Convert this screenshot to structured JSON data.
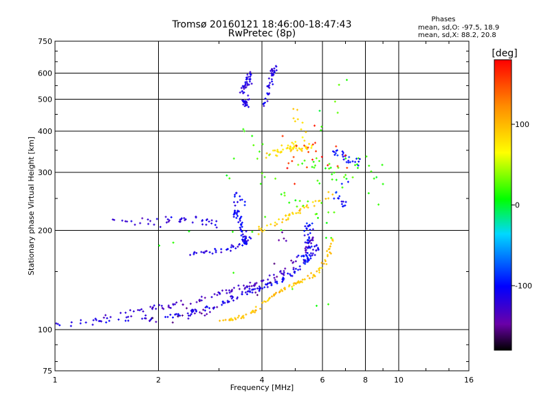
{
  "chart_data": {
    "type": "scatter",
    "title": "Tromsø 20160121 18:46:00-18:47:43",
    "subtitle": "RwPretec (8p)",
    "xlabel": "Frequency [MHz]",
    "ylabel": "Stationary phase Virtual Height [km]",
    "x_scale": "log",
    "y_scale": "log",
    "xlim": [
      1,
      16
    ],
    "ylim": [
      75,
      750
    ],
    "x_ticks": [
      1,
      2,
      4,
      6,
      8,
      10,
      16
    ],
    "x_tick_labels": [
      "1",
      "2",
      "4",
      "6",
      "8",
      "10",
      "16"
    ],
    "y_ticks": [
      75,
      100,
      200,
      300,
      400,
      500,
      600,
      750
    ],
    "y_tick_labels": [
      "75",
      "100",
      "200",
      "300",
      "400",
      "500",
      "600",
      "750"
    ],
    "grid": true,
    "phase_stats": {
      "heading": "Phases",
      "line_o": "mean, sd,O: -97.5, 18.9",
      "line_x": "mean, sd,X:  88.2, 20.8"
    },
    "colorbar": {
      "label": "[deg]",
      "range": [
        -180,
        180
      ],
      "ticks": [
        100,
        0,
        -100
      ],
      "tick_labels": [
        "100",
        "0",
        "-100"
      ]
    },
    "traces": [
      {
        "phase": -110,
        "count": 150,
        "spread": 0.06,
        "size": 3.0,
        "points": [
          [
            1.0,
            104
          ],
          [
            1.3,
            106
          ],
          [
            1.6,
            108
          ],
          [
            2.0,
            108
          ],
          [
            2.4,
            112
          ],
          [
            2.8,
            116
          ],
          [
            3.2,
            122
          ],
          [
            3.6,
            130
          ],
          [
            4.0,
            135
          ],
          [
            4.4,
            140
          ],
          [
            4.8,
            146
          ],
          [
            5.2,
            155
          ],
          [
            5.5,
            165
          ],
          [
            5.8,
            180
          ]
        ]
      },
      {
        "phase": -130,
        "count": 110,
        "spread": 0.06,
        "size": 3.0,
        "points": [
          [
            1.4,
            110
          ],
          [
            1.8,
            114
          ],
          [
            2.2,
            118
          ],
          [
            2.6,
            123
          ],
          [
            3.0,
            128
          ],
          [
            3.4,
            133
          ],
          [
            3.8,
            137
          ],
          [
            4.2,
            142
          ],
          [
            4.6,
            150
          ],
          [
            5.0,
            160
          ],
          [
            5.3,
            172
          ],
          [
            5.6,
            190
          ]
        ]
      },
      {
        "phase": 95,
        "count": 100,
        "spread": 0.04,
        "size": 3.0,
        "points": [
          [
            3.0,
            106
          ],
          [
            3.3,
            108
          ],
          [
            3.6,
            110
          ],
          [
            3.9,
            116
          ],
          [
            4.2,
            124
          ],
          [
            4.6,
            132
          ],
          [
            5.0,
            138
          ],
          [
            5.4,
            142
          ],
          [
            5.8,
            148
          ],
          [
            6.1,
            160
          ],
          [
            6.3,
            175
          ],
          [
            6.4,
            190
          ]
        ]
      },
      {
        "phase": 90,
        "count": 45,
        "spread": 0.08,
        "size": 3.0,
        "points": [
          [
            4.0,
            200
          ],
          [
            4.4,
            210
          ],
          [
            4.8,
            220
          ],
          [
            5.2,
            230
          ],
          [
            5.6,
            240
          ],
          [
            6.0,
            250
          ],
          [
            6.4,
            260
          ]
        ]
      },
      {
        "phase": -120,
        "count": 45,
        "spread": 0.1,
        "size": 3.0,
        "points": [
          [
            1.5,
            212
          ],
          [
            1.9,
            214
          ],
          [
            2.3,
            215
          ],
          [
            2.7,
            212
          ],
          [
            3.0,
            210
          ]
        ]
      },
      {
        "phase": -115,
        "count": 40,
        "spread": 0.06,
        "size": 3.0,
        "points": [
          [
            2.5,
            170
          ],
          [
            2.8,
            172
          ],
          [
            3.1,
            175
          ],
          [
            3.4,
            180
          ],
          [
            3.7,
            190
          ]
        ]
      },
      {
        "phase": -105,
        "count": 60,
        "spread": 0.05,
        "size": 3.0,
        "points": [
          [
            3.3,
            220
          ],
          [
            3.4,
            230
          ],
          [
            3.5,
            200
          ],
          [
            3.6,
            180
          ],
          [
            3.3,
            260
          ],
          [
            3.6,
            240
          ]
        ]
      },
      {
        "phase": -100,
        "count": 45,
        "spread": 0.05,
        "size": 3.0,
        "points": [
          [
            5.2,
            170
          ],
          [
            5.4,
            160
          ],
          [
            5.5,
            180
          ],
          [
            5.3,
            200
          ],
          [
            5.6,
            210
          ],
          [
            5.2,
            150
          ]
        ]
      },
      {
        "phase": -115,
        "count": 60,
        "spread": 0.04,
        "size": 3.0,
        "points": [
          [
            3.5,
            520
          ],
          [
            3.6,
            560
          ],
          [
            3.7,
            600
          ],
          [
            3.6,
            480
          ],
          [
            3.5,
            500
          ]
        ]
      },
      {
        "phase": -110,
        "count": 40,
        "spread": 0.04,
        "size": 3.0,
        "points": [
          [
            4.1,
            480
          ],
          [
            4.2,
            540
          ],
          [
            4.3,
            600
          ],
          [
            4.35,
            630
          ]
        ]
      },
      {
        "phase": 80,
        "count": 60,
        "spread": 0.1,
        "size": 3.0,
        "points": [
          [
            4.2,
            340
          ],
          [
            4.6,
            350
          ],
          [
            5.0,
            360
          ],
          [
            5.4,
            355
          ],
          [
            5.0,
            470
          ]
        ]
      },
      {
        "phase": 20,
        "count": 90,
        "spread": 0.18,
        "size": 3.0,
        "points": [
          [
            3.0,
            280
          ],
          [
            4.0,
            380
          ],
          [
            5.0,
            300
          ],
          [
            6.0,
            330
          ],
          [
            7.0,
            280
          ],
          [
            8.0,
            340
          ],
          [
            9.0,
            250
          ],
          [
            3.5,
            400
          ],
          [
            4.5,
            250
          ],
          [
            6.5,
            220
          ],
          [
            2.0,
            180
          ],
          [
            6.0,
            120
          ],
          [
            7.0,
            600
          ],
          [
            5.5,
            220
          ]
        ]
      },
      {
        "phase": -100,
        "count": 40,
        "spread": 0.07,
        "size": 3.0,
        "points": [
          [
            6.4,
            350
          ],
          [
            6.8,
            340
          ],
          [
            7.2,
            320
          ],
          [
            7.6,
            330
          ],
          [
            6.6,
            250
          ],
          [
            6.9,
            240
          ]
        ]
      },
      {
        "phase": -145,
        "count": 30,
        "spread": 0.12,
        "size": 3.0,
        "points": [
          [
            1.8,
            108
          ],
          [
            2.5,
            110
          ],
          [
            3.0,
            115
          ],
          [
            4.5,
            140
          ],
          [
            4.8,
            220
          ]
        ]
      },
      {
        "phase": 160,
        "count": 22,
        "spread": 0.25,
        "size": 3.0,
        "points": [
          [
            4.5,
            330
          ],
          [
            5.5,
            330
          ],
          [
            6.2,
            350
          ],
          [
            7.0,
            300
          ],
          [
            5.0,
            480
          ],
          [
            4.8,
            200
          ]
        ]
      }
    ]
  }
}
